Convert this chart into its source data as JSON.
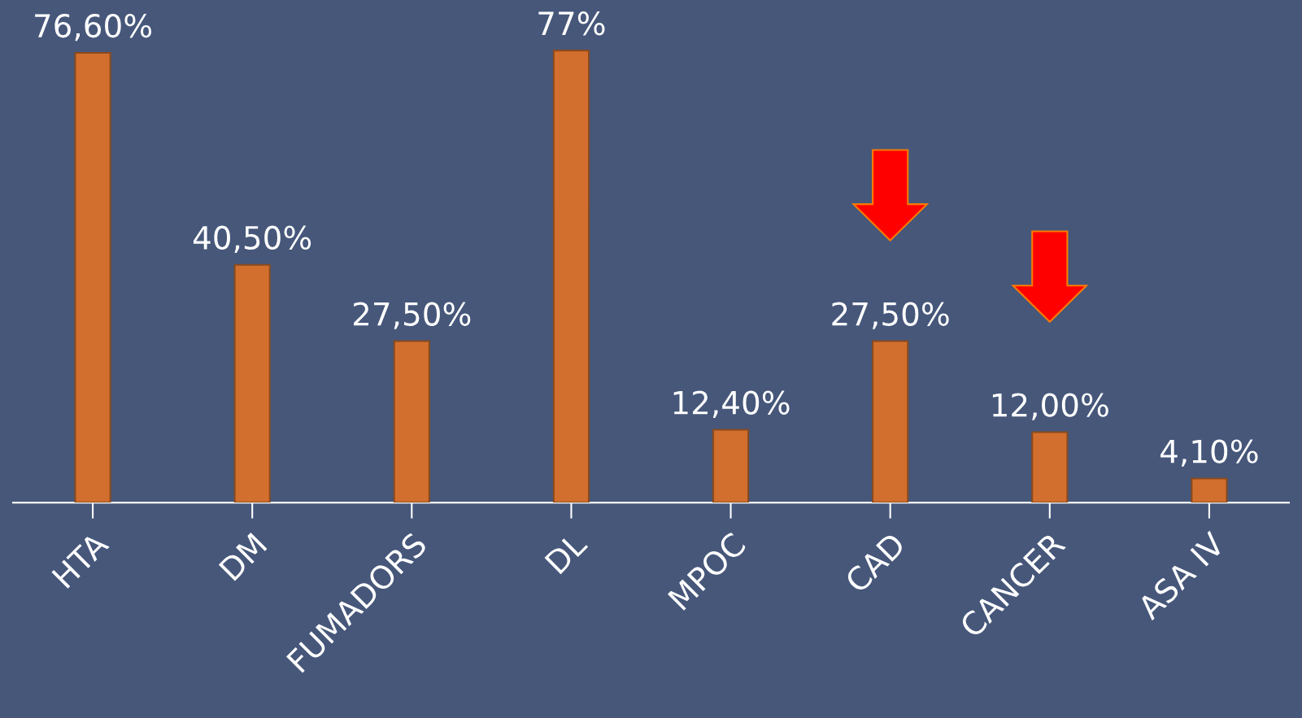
{
  "chart_data": {
    "type": "bar",
    "categories": [
      "HTA",
      "DM",
      "FUMADORS",
      "DL",
      "MPOC",
      "CAD",
      "CANCER",
      "ASA IV"
    ],
    "values": [
      76.6,
      40.5,
      27.5,
      77,
      12.4,
      27.5,
      12.0,
      4.1
    ],
    "value_labels": [
      "76,60%",
      "40,50%",
      "27,50%",
      "77%",
      "12,40%",
      "27,50%",
      "12,00%",
      "4,10%"
    ],
    "color": "#d36f2e",
    "grid": false,
    "legend": false
  }
}
